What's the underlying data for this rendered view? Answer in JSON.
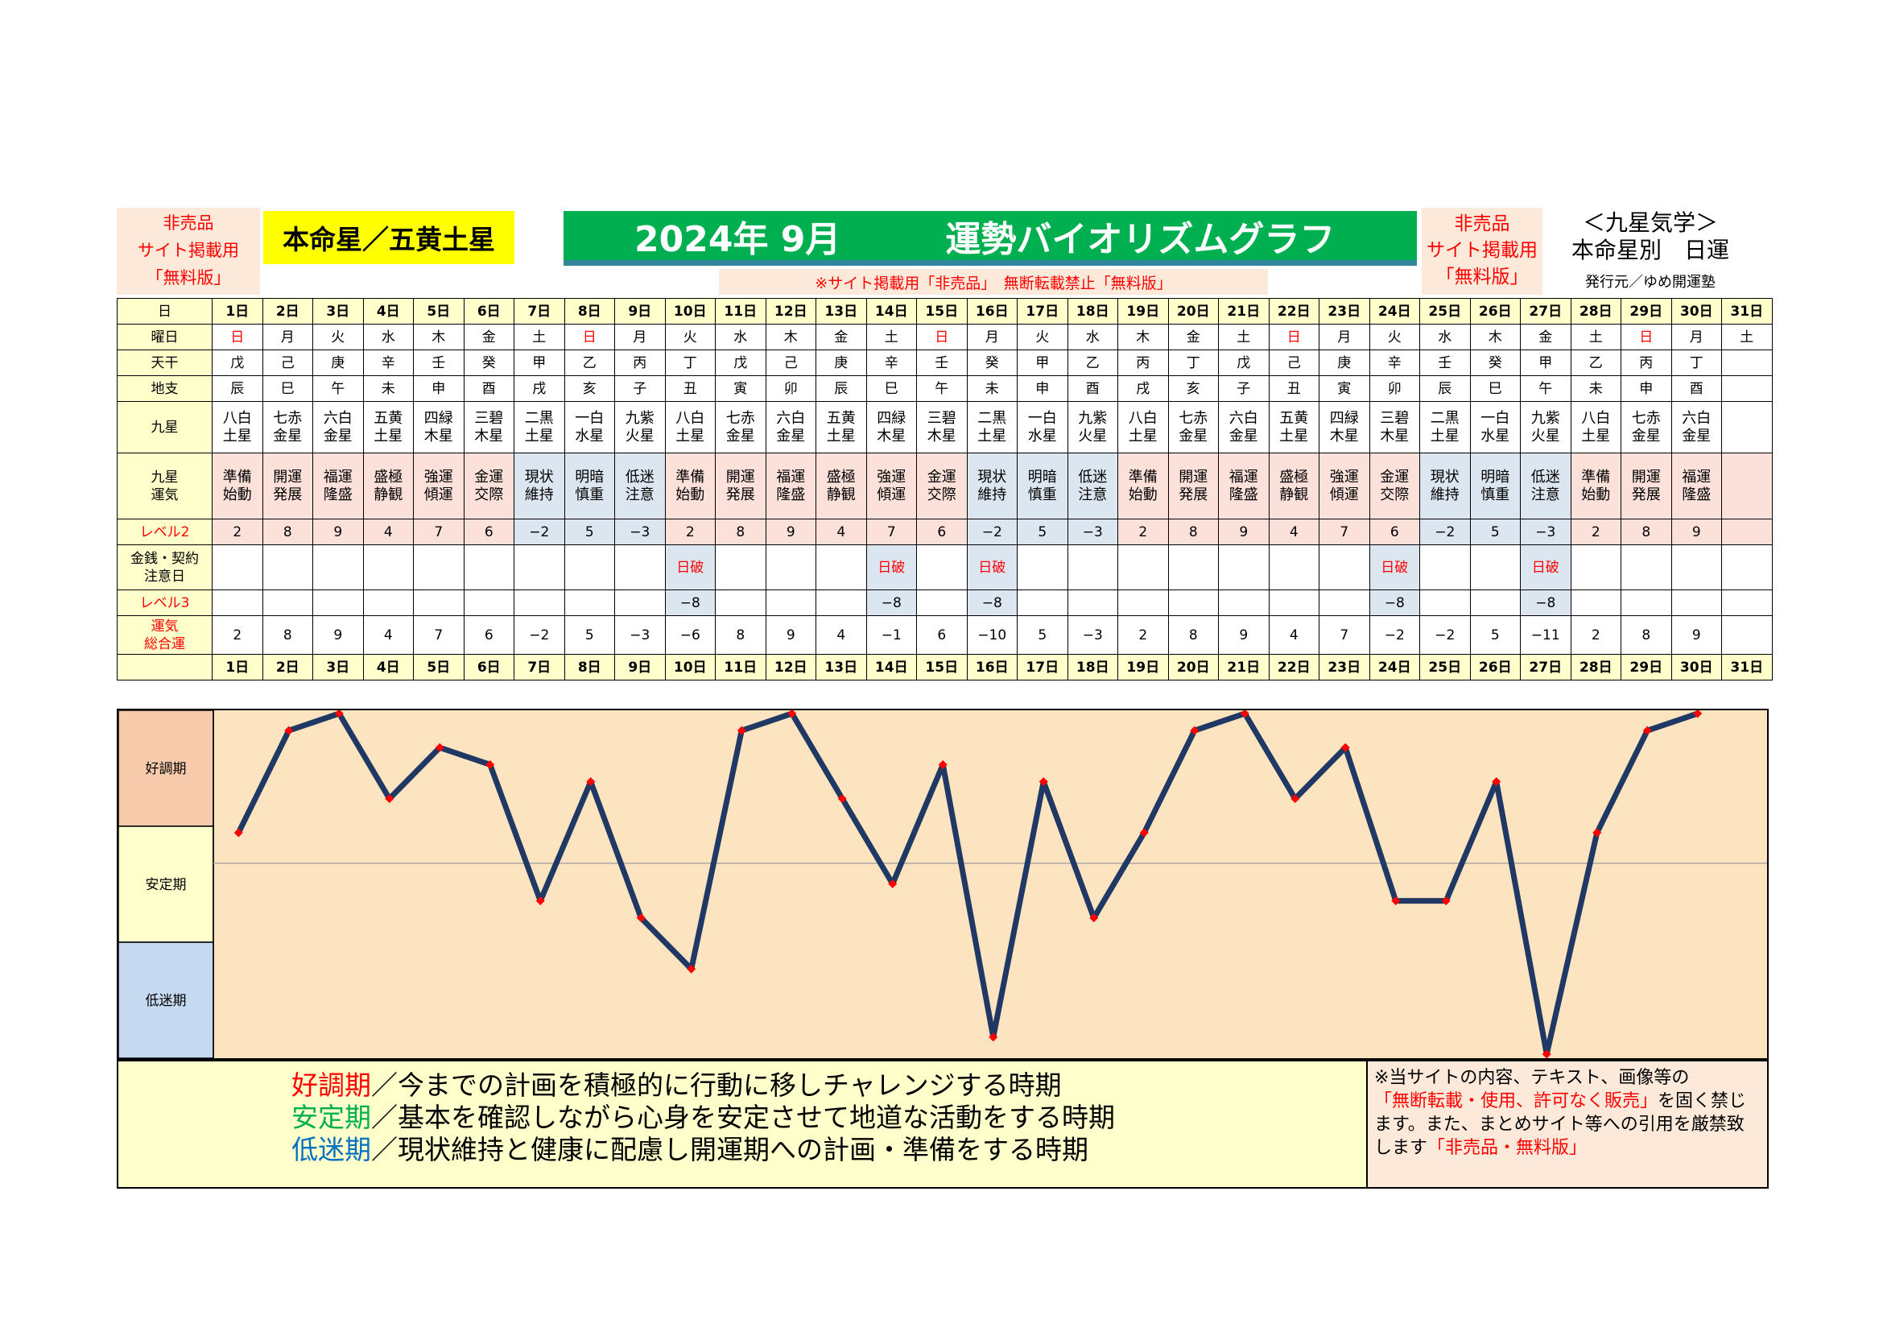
{
  "header": {
    "left_notice": [
      "非売品",
      "サイト掲載用",
      "「無料版」"
    ],
    "honmei": "本命星／五黄土星",
    "year_month": "2024年 9月",
    "title": "運勢バイオリズムグラフ",
    "notice": "※サイト掲載用「非売品」　無断転載禁止「無料版」",
    "right_notice": [
      "非売品",
      "サイト掲載用",
      "「無料版」"
    ],
    "kyusei": [
      "＜九星気学＞",
      "本命星別　日運"
    ],
    "publisher": "発行元／ゆめ開運塾"
  },
  "row_labels": {
    "day": "日",
    "weekday": "曜日",
    "tenkan": "天干",
    "chishi": "地支",
    "kyusei": "九星",
    "unki": [
      "九星",
      "運気"
    ],
    "level2": "レベル2",
    "kinsen": [
      "金銭・契約",
      "注意日"
    ],
    "level3": "レベル3",
    "total": [
      "運気",
      "総合運"
    ]
  },
  "days": [
    "1日",
    "2日",
    "3日",
    "4日",
    "5日",
    "6日",
    "7日",
    "8日",
    "9日",
    "10日",
    "11日",
    "12日",
    "13日",
    "14日",
    "15日",
    "16日",
    "17日",
    "18日",
    "19日",
    "20日",
    "21日",
    "22日",
    "23日",
    "24日",
    "25日",
    "26日",
    "27日",
    "28日",
    "29日",
    "30日",
    "31日"
  ],
  "weekdays": [
    "日",
    "月",
    "火",
    "水",
    "木",
    "金",
    "土",
    "日",
    "月",
    "火",
    "水",
    "木",
    "金",
    "土",
    "日",
    "月",
    "火",
    "水",
    "木",
    "金",
    "土",
    "日",
    "月",
    "火",
    "水",
    "木",
    "金",
    "土",
    "日",
    "月",
    "土"
  ],
  "tenkan": [
    "戊",
    "己",
    "庚",
    "辛",
    "壬",
    "癸",
    "甲",
    "乙",
    "丙",
    "丁",
    "戊",
    "己",
    "庚",
    "辛",
    "壬",
    "癸",
    "甲",
    "乙",
    "丙",
    "丁",
    "戊",
    "己",
    "庚",
    "辛",
    "壬",
    "癸",
    "甲",
    "乙",
    "丙",
    "丁",
    ""
  ],
  "chishi": [
    "辰",
    "巳",
    "午",
    "未",
    "申",
    "酉",
    "戌",
    "亥",
    "子",
    "丑",
    "寅",
    "卯",
    "辰",
    "巳",
    "午",
    "未",
    "申",
    "酉",
    "戌",
    "亥",
    "子",
    "丑",
    "寅",
    "卯",
    "辰",
    "巳",
    "午",
    "未",
    "申",
    "酉",
    ""
  ],
  "kyusei": [
    [
      "八白",
      "土星"
    ],
    [
      "七赤",
      "金星"
    ],
    [
      "六白",
      "金星"
    ],
    [
      "五黄",
      "土星"
    ],
    [
      "四緑",
      "木星"
    ],
    [
      "三碧",
      "木星"
    ],
    [
      "二黒",
      "土星"
    ],
    [
      "一白",
      "水星"
    ],
    [
      "九紫",
      "火星"
    ],
    [
      "八白",
      "土星"
    ],
    [
      "七赤",
      "金星"
    ],
    [
      "六白",
      "金星"
    ],
    [
      "五黄",
      "土星"
    ],
    [
      "四緑",
      "木星"
    ],
    [
      "三碧",
      "木星"
    ],
    [
      "二黒",
      "土星"
    ],
    [
      "一白",
      "水星"
    ],
    [
      "九紫",
      "火星"
    ],
    [
      "八白",
      "土星"
    ],
    [
      "七赤",
      "金星"
    ],
    [
      "六白",
      "金星"
    ],
    [
      "五黄",
      "土星"
    ],
    [
      "四緑",
      "木星"
    ],
    [
      "三碧",
      "木星"
    ],
    [
      "二黒",
      "土星"
    ],
    [
      "一白",
      "水星"
    ],
    [
      "九紫",
      "火星"
    ],
    [
      "八白",
      "土星"
    ],
    [
      "七赤",
      "金星"
    ],
    [
      "六白",
      "金星"
    ],
    [
      "",
      ""
    ]
  ],
  "unki": [
    [
      "準備",
      "始動"
    ],
    [
      "開運",
      "発展"
    ],
    [
      "福運",
      "隆盛"
    ],
    [
      "盛極",
      "静観"
    ],
    [
      "強運",
      "傾運"
    ],
    [
      "金運",
      "交際"
    ],
    [
      "現状",
      "維持"
    ],
    [
      "明暗",
      "慎重"
    ],
    [
      "低迷",
      "注意"
    ],
    [
      "準備",
      "始動"
    ],
    [
      "開運",
      "発展"
    ],
    [
      "福運",
      "隆盛"
    ],
    [
      "盛極",
      "静観"
    ],
    [
      "強運",
      "傾運"
    ],
    [
      "金運",
      "交際"
    ],
    [
      "現状",
      "維持"
    ],
    [
      "明暗",
      "慎重"
    ],
    [
      "低迷",
      "注意"
    ],
    [
      "準備",
      "始動"
    ],
    [
      "開運",
      "発展"
    ],
    [
      "福運",
      "隆盛"
    ],
    [
      "盛極",
      "静観"
    ],
    [
      "強運",
      "傾運"
    ],
    [
      "金運",
      "交際"
    ],
    [
      "現状",
      "維持"
    ],
    [
      "明暗",
      "慎重"
    ],
    [
      "低迷",
      "注意"
    ],
    [
      "準備",
      "始動"
    ],
    [
      "開運",
      "発展"
    ],
    [
      "福運",
      "隆盛"
    ],
    [
      "",
      ""
    ]
  ],
  "level2": [
    "2",
    "8",
    "9",
    "4",
    "7",
    "6",
    "−2",
    "5",
    "−3",
    "2",
    "8",
    "9",
    "4",
    "7",
    "6",
    "−2",
    "5",
    "−3",
    "2",
    "8",
    "9",
    "4",
    "7",
    "6",
    "−2",
    "5",
    "−3",
    "2",
    "8",
    "9",
    ""
  ],
  "kinsen": [
    "",
    "",
    "",
    "",
    "",
    "",
    "",
    "",
    "",
    "日破",
    "",
    "",
    "",
    "日破",
    "",
    "日破",
    "",
    "",
    "",
    "",
    "",
    "",
    "",
    "日破",
    "",
    "",
    "日破",
    "",
    "",
    "",
    ""
  ],
  "level3": [
    "",
    "",
    "",
    "",
    "",
    "",
    "",
    "",
    "",
    "−8",
    "",
    "",
    "",
    "−8",
    "",
    "−8",
    "",
    "",
    "",
    "",
    "",
    "",
    "",
    "−8",
    "",
    "",
    "−8",
    "",
    "",
    "",
    ""
  ],
  "total": [
    "2",
    "8",
    "9",
    "4",
    "7",
    "6",
    "−2",
    "5",
    "−3",
    "−6",
    "8",
    "9",
    "4",
    "−1",
    "6",
    "−10",
    "5",
    "−3",
    "2",
    "8",
    "9",
    "4",
    "7",
    "−2",
    "−2",
    "5",
    "−11",
    "2",
    "8",
    "9",
    ""
  ],
  "chart_data": {
    "type": "line",
    "x": [
      "1日",
      "2日",
      "3日",
      "4日",
      "5日",
      "6日",
      "7日",
      "8日",
      "9日",
      "10日",
      "11日",
      "12日",
      "13日",
      "14日",
      "15日",
      "16日",
      "17日",
      "18日",
      "19日",
      "20日",
      "21日",
      "22日",
      "23日",
      "24日",
      "25日",
      "26日",
      "27日",
      "28日",
      "29日",
      "30日"
    ],
    "values": [
      2,
      8,
      9,
      4,
      7,
      6,
      -2,
      5,
      -3,
      -6,
      8,
      9,
      4,
      -1,
      6,
      -10,
      5,
      -3,
      2,
      8,
      9,
      4,
      7,
      -2,
      -2,
      5,
      -11,
      2,
      8,
      9
    ],
    "ylim": [
      -11,
      9
    ],
    "bands": [
      "好調期",
      "安定期",
      "低迷期"
    ],
    "line_color": "#1f3864",
    "marker_color": "#ff0000",
    "band_colors": [
      "#f8cbad",
      "#ffffcc",
      "#c5d9f1"
    ],
    "plot_bg": "#fce4c0"
  },
  "legend": [
    {
      "term": "好調期",
      "color": "#ff0000",
      "text": "／今までの計画を積極的に行動に移しチャレンジする時期"
    },
    {
      "term": "安定期",
      "color": "#00b050",
      "text": "／基本を確認しながら心身を安定させて地道な活動をする時期"
    },
    {
      "term": "低迷期",
      "color": "#0070c0",
      "text": "／現状維持と健康に配慮し開運期への計画・準備をする時期"
    }
  ],
  "copyright": {
    "line1": "※当サイトの内容、テキスト、画像等の",
    "red1": "「無断転載・使用、許可なく販売」",
    "line2": "を固く禁じます。また、まとめサイト等への引用を厳禁致します",
    "red2": "「非売品・無料版」"
  }
}
